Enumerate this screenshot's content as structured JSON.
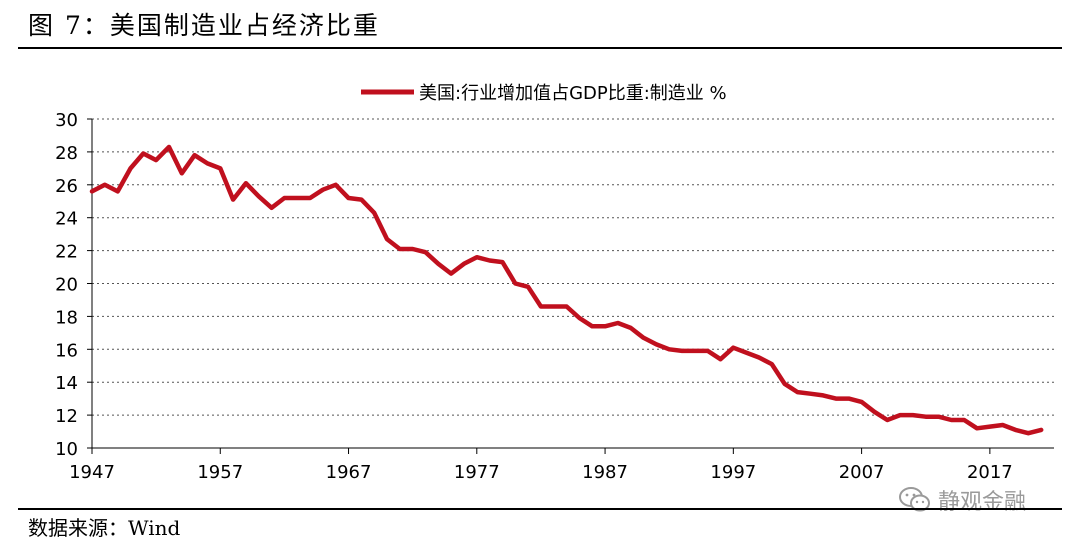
{
  "figure": {
    "title": "图 7：美国制造业占经济比重",
    "source": "数据来源：Wind",
    "watermark": "静观金融",
    "watermark_icon": "wechat-icon"
  },
  "chart_data": {
    "type": "line",
    "legend_position": "top-center",
    "grid": "horizontal-dotted",
    "series": [
      {
        "name": "美国:行业增加值占GDP比重:制造业 %",
        "color": "#c0101e",
        "x": [
          1947,
          1948,
          1949,
          1950,
          1951,
          1952,
          1953,
          1954,
          1955,
          1956,
          1957,
          1958,
          1959,
          1960,
          1961,
          1962,
          1963,
          1964,
          1965,
          1966,
          1967,
          1968,
          1969,
          1970,
          1971,
          1972,
          1973,
          1974,
          1975,
          1976,
          1977,
          1978,
          1979,
          1980,
          1981,
          1982,
          1983,
          1984,
          1985,
          1986,
          1987,
          1988,
          1989,
          1990,
          1991,
          1992,
          1993,
          1994,
          1995,
          1996,
          1997,
          1998,
          1999,
          2000,
          2001,
          2002,
          2003,
          2004,
          2005,
          2006,
          2007,
          2008,
          2009,
          2010,
          2011,
          2012,
          2013,
          2014,
          2015,
          2016,
          2017,
          2018,
          2019,
          2020,
          2021
        ],
        "values": [
          25.6,
          26.0,
          25.6,
          27.0,
          27.9,
          27.5,
          28.3,
          26.7,
          27.8,
          27.3,
          27.0,
          25.1,
          26.1,
          25.3,
          24.6,
          25.2,
          25.2,
          25.2,
          25.7,
          26.0,
          25.2,
          25.1,
          24.3,
          22.7,
          22.1,
          22.1,
          21.9,
          21.2,
          20.6,
          21.2,
          21.6,
          21.4,
          21.3,
          20.0,
          19.8,
          18.6,
          18.6,
          18.6,
          17.9,
          17.4,
          17.4,
          17.6,
          17.3,
          16.7,
          16.3,
          16.0,
          15.9,
          15.9,
          15.9,
          15.4,
          16.1,
          15.8,
          15.5,
          15.1,
          13.9,
          13.4,
          13.3,
          13.2,
          13.0,
          13.0,
          12.8,
          12.2,
          11.7,
          12.0,
          12.0,
          11.9,
          11.9,
          11.7,
          11.7,
          11.2,
          11.3,
          11.4,
          11.1,
          10.9,
          11.1
        ]
      }
    ],
    "x_ticks": [
      "1947",
      "1957",
      "1967",
      "1977",
      "1987",
      "1997",
      "2007",
      "2017"
    ],
    "y_ticks": [
      "30",
      "28",
      "26",
      "24",
      "22",
      "20",
      "18",
      "16",
      "14",
      "12",
      "10"
    ],
    "ylim": [
      10,
      30
    ],
    "xlim": [
      1947,
      2022
    ]
  }
}
